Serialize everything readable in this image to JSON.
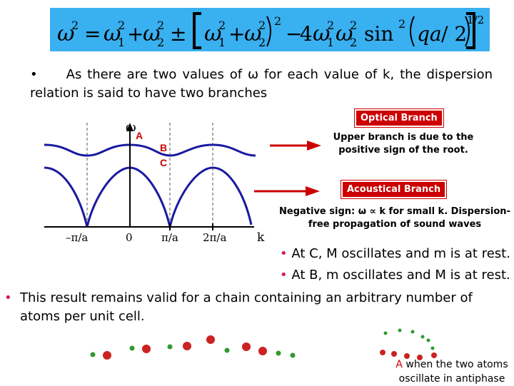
{
  "formula": {
    "lhs_symbol": "ω",
    "sup2": "2",
    "equals": "=",
    "omega": "ω",
    "sub1": "1",
    "sub2": "2",
    "plus": "+",
    "plusminus": "±",
    "minus": "−",
    "four": "4",
    "sin": "sin",
    "qa": "qa",
    "over2": "/ 2",
    "power_half": "1/2",
    "bg_color": "#39b0f0"
  },
  "intro": {
    "bullet": "•",
    "text": "As there are two values of ω for each value of k, the dispersion relation is said to have two branches"
  },
  "diagram": {
    "omega_axis_label": "ω",
    "k_axis_label": "k",
    "point_a": "A",
    "point_b": "B",
    "point_c": "C",
    "ticks": [
      "–π/a",
      "0",
      "π/a",
      "2π/a"
    ],
    "curve_color": "#1a1aa0",
    "point_label_color": "#cc0000"
  },
  "optical": {
    "tag": "Optical Branch",
    "note": "Upper branch is due to the positive sign of the root."
  },
  "acoustical": {
    "tag": "Acoustical Branch",
    "note": "Negative sign: ω ∝ k for small k. Dispersion-free propagation of sound waves"
  },
  "observations": [
    {
      "bullet": "•",
      "text": "At C, M oscillates and m is at rest."
    },
    {
      "bullet": "•",
      "text": "At B, m oscillates and M is at rest."
    }
  ],
  "result": {
    "bullet": "•",
    "text": "This result remains valid for a chain containing an arbitrary number of atoms per unit cell."
  },
  "antiphase": {
    "label_a": "A",
    "text": " when the two atoms oscillate in antiphase"
  },
  "colors": {
    "tag_red": "#cc0000",
    "bullet": "#cc1f4a",
    "atom_red": "#cc2222",
    "atom_green": "#2e9b2e"
  }
}
